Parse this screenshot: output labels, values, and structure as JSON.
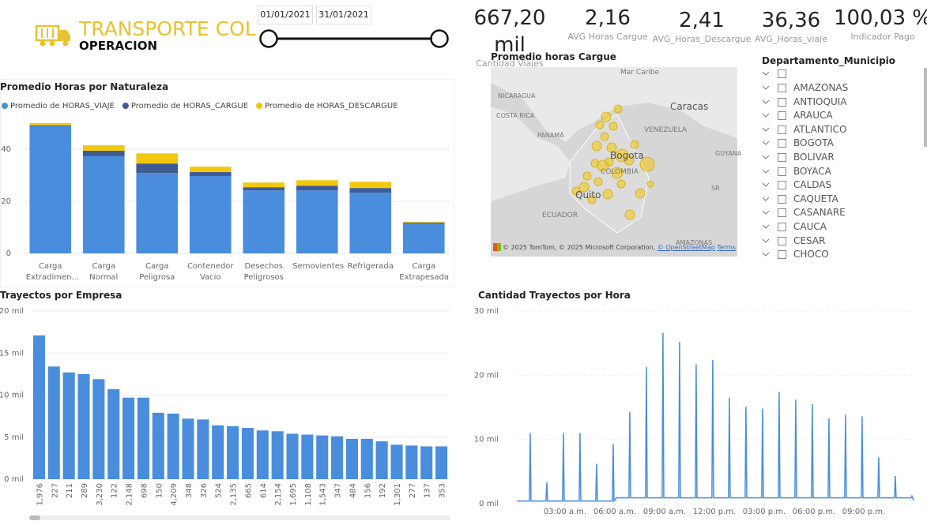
{
  "header": {
    "title": "TRANSPORTE COL",
    "subtitle": "OPERACION"
  },
  "date_range": {
    "start": "01/01/2021",
    "end": "31/01/2021"
  },
  "kpis": [
    {
      "value": "667,20 mil",
      "label": "Cantidad Viajes"
    },
    {
      "value": "2,16",
      "label": "AVG Horas Cargue"
    },
    {
      "value": "2,41",
      "label": "AVG_Horas_Descargue"
    },
    {
      "value": "36,36",
      "label": "AVG_Horas_viaje"
    },
    {
      "value": "100,03 %",
      "label": "Indicador Pago"
    }
  ],
  "map": {
    "title": "Promedio horas Cargue",
    "labels": [
      "Mar Caribe",
      "NICARAGUA",
      "COSTA RICA",
      "PANAMÁ",
      "Caracas",
      "VENEZUELA",
      "Bogota",
      "COLOMBIA",
      "ECUADOR",
      "Quito",
      "GUYANA",
      "SR",
      "AMAZONAS"
    ],
    "attribution": "© 2025 TomTom, © 2025 Microsoft Corporation,",
    "osm": "© OpenStreetMap",
    "terms": "Terms"
  },
  "slicer": {
    "title": "Departamento_Municipio",
    "items": [
      "AMAZONAS",
      "ANTIOQUIA",
      "ARAUCA",
      "ATLANTICO",
      "BOGOTA",
      "BOLIVAR",
      "BOYACA",
      "CALDAS",
      "CAQUETA",
      "CASANARE",
      "CAUCA",
      "CESAR",
      "CHOCO"
    ]
  },
  "chart_data": [
    {
      "type": "stacked_bar",
      "title": "Promedio Horas por Naturaleza",
      "categories": [
        "Carga Extradimen...",
        "Carga Normal",
        "Carga Peligrosa",
        "Contenedor Vacio",
        "Desechos Peligrosos",
        "Semovientes",
        "Refrigerada",
        "Carga Extrapesada"
      ],
      "series": [
        {
          "name": "Promedio de HORAS_VIAJE",
          "color": "#4a8ddc",
          "values": [
            48.8,
            37.3,
            30.9,
            29.7,
            24.2,
            24.2,
            23.3,
            11.5
          ]
        },
        {
          "name": "Promedio de HORAS_CARGUE",
          "color": "#3f5b96",
          "values": [
            0.3,
            2.1,
            3.6,
            1.5,
            1.2,
            1.8,
            1.8,
            0.3
          ]
        },
        {
          "name": "Promedio de HORAS_DESCARGUE",
          "color": "#f2c80f",
          "values": [
            0.9,
            2.1,
            3.9,
            2.1,
            1.8,
            2.1,
            2.4,
            0.3
          ]
        }
      ],
      "ylim": [
        0,
        50
      ],
      "yticks": [
        0,
        20,
        40
      ],
      "grid": true,
      "legend": "top-left"
    },
    {
      "type": "bar",
      "title": "Trayectos por Empresa",
      "categories": [
        "1,976",
        "227",
        "211",
        "289",
        "3,230",
        "122",
        "2,148",
        "698",
        "150",
        "4,209",
        "348",
        "326",
        "524",
        "2,135",
        "665",
        "614",
        "2,154",
        "1,695",
        "1,108",
        "1,543",
        "347",
        "484",
        "156",
        "192",
        "1,301",
        "277",
        "137",
        "353"
      ],
      "series": [
        {
          "color": "#4a8ddc",
          "values": [
            17.1,
            13.4,
            12.7,
            12.5,
            11.9,
            10.7,
            9.7,
            9.7,
            7.9,
            7.8,
            7.2,
            7.1,
            6.4,
            6.3,
            6.1,
            5.8,
            5.7,
            5.4,
            5.3,
            5.2,
            5.1,
            4.8,
            4.8,
            4.5,
            4.1,
            4.0,
            3.9,
            3.9
          ]
        }
      ],
      "ylim": [
        0,
        20
      ],
      "yticks": [
        {
          "value": 0,
          "label": "0 mil"
        },
        {
          "value": 5,
          "label": "5 mil"
        },
        {
          "value": 10,
          "label": "10 mil"
        },
        {
          "value": 15,
          "label": "15 mil"
        },
        {
          "value": 20,
          "label": "20 mil"
        }
      ],
      "grid": true
    },
    {
      "type": "line",
      "title": "Cantidad Trayectos por Hora",
      "x": [
        0.1,
        0.85,
        0.9,
        0.95,
        1.1,
        1.85,
        1.9,
        1.95,
        2.1,
        2.85,
        2.9,
        2.95,
        3.1,
        3.85,
        3.9,
        3.95,
        4.1,
        4.85,
        4.9,
        4.95,
        5.1,
        5.85,
        5.9,
        5.95,
        6.1,
        6.85,
        6.9,
        6.95,
        7.1,
        7.85,
        7.9,
        7.95,
        8.1,
        8.85,
        8.9,
        8.95,
        9.1,
        9.85,
        9.9,
        9.95,
        10.1,
        10.85,
        10.9,
        10.95,
        11.1,
        11.85,
        11.9,
        11.95,
        12.1,
        12.85,
        12.9,
        12.95,
        13.1,
        13.85,
        13.9,
        13.95,
        14.1,
        14.85,
        14.9,
        14.95,
        15.1,
        15.85,
        15.9,
        15.95,
        16.1,
        16.85,
        16.9,
        16.95,
        17.1,
        17.85,
        17.9,
        17.95,
        18.1,
        18.85,
        18.9,
        18.95,
        19.1,
        19.85,
        19.9,
        19.95,
        20.1,
        20.85,
        20.9,
        20.95,
        21.1,
        21.85,
        21.9,
        21.95,
        22.1,
        22.85,
        22.9,
        22.95,
        23.1,
        23.85,
        23.9,
        23.95,
        24
      ],
      "series": [
        {
          "color": "#4a8ddc",
          "values": [
            0.4,
            0.4,
            11,
            0.4,
            0.4,
            0.4,
            3.3,
            0.4,
            0.4,
            0.4,
            11,
            0.4,
            0.4,
            0.4,
            11,
            0.4,
            0.4,
            0.4,
            6.2,
            0.4,
            0.4,
            0.4,
            9.3,
            0.4,
            0.9,
            0.9,
            14.3,
            0.9,
            0.9,
            0.9,
            21.3,
            0.9,
            0.9,
            0.9,
            26.6,
            0.9,
            0.9,
            0.9,
            25.2,
            0.9,
            0.9,
            0.9,
            21.7,
            0.9,
            0.9,
            0.9,
            22.4,
            0.9,
            0.9,
            0.9,
            16.5,
            0.9,
            0.9,
            0.9,
            15.1,
            0.9,
            0.9,
            0.9,
            14.8,
            0.9,
            0.9,
            0.9,
            17.4,
            0.9,
            0.9,
            0.9,
            16.2,
            0.9,
            0.9,
            0.9,
            15.5,
            0.9,
            0.9,
            0.9,
            13.3,
            0.9,
            0.9,
            0.9,
            13.8,
            0.9,
            0.9,
            0.9,
            13.6,
            0.9,
            0.9,
            0.9,
            7.2,
            0.9,
            0.9,
            0.9,
            4.3,
            0.9,
            0.9,
            0.9,
            1.2,
            0.9,
            0.5
          ]
        }
      ],
      "xlim": [
        0,
        24
      ],
      "xticks": [
        {
          "value": 3,
          "label": "03:00 a.m."
        },
        {
          "value": 6,
          "label": "06:00 a.m."
        },
        {
          "value": 9,
          "label": "09:00 a.m."
        },
        {
          "value": 12,
          "label": "12:00 p.m."
        },
        {
          "value": 15,
          "label": "03:00 p.m."
        },
        {
          "value": 18,
          "label": "06:00 p.m."
        },
        {
          "value": 21,
          "label": "09:00 p.m."
        }
      ],
      "ylim": [
        0,
        30
      ],
      "yticks": [
        {
          "value": 0,
          "label": "0 mil"
        },
        {
          "value": 10,
          "label": "10 mil"
        },
        {
          "value": 20,
          "label": "20 mil"
        },
        {
          "value": 30,
          "label": "30 mil"
        }
      ],
      "grid": true
    }
  ]
}
